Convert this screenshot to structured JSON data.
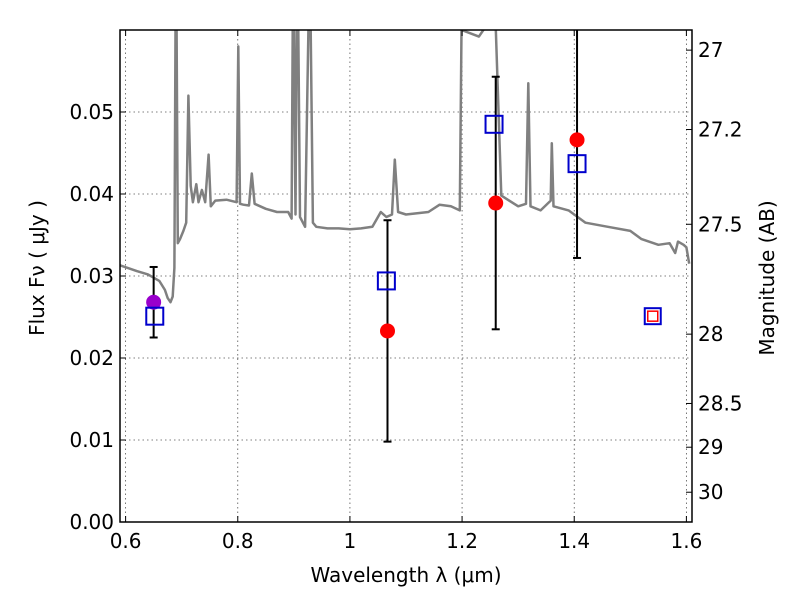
{
  "chart_data": {
    "type": "scatter",
    "title": "",
    "xlabel": "Wavelength  λ (μm)",
    "ylabel_left": "Flux  Fν  ( μJy )",
    "ylabel_right": "Magnitude (AB)",
    "xlim": [
      0.59,
      1.61
    ],
    "ylim": [
      0.0,
      0.06
    ],
    "grid": true,
    "x_ticks": [
      {
        "value": 0.6,
        "label": "0.6"
      },
      {
        "value": 0.8,
        "label": "0.8"
      },
      {
        "value": 1.0,
        "label": "1"
      },
      {
        "value": 1.2,
        "label": "1.2"
      },
      {
        "value": 1.4,
        "label": "1.4"
      },
      {
        "value": 1.6,
        "label": "1.6"
      }
    ],
    "y_ticks": [
      {
        "value": 0.0,
        "label": "0.00"
      },
      {
        "value": 0.01,
        "label": "0.01"
      },
      {
        "value": 0.02,
        "label": "0.02"
      },
      {
        "value": 0.03,
        "label": "0.03"
      },
      {
        "value": 0.04,
        "label": "0.04"
      },
      {
        "value": 0.05,
        "label": "0.05"
      }
    ],
    "right_ticks": [
      {
        "mag": 27,
        "label": "27"
      },
      {
        "mag": 27.2,
        "label": "27.2"
      },
      {
        "mag": 27.5,
        "label": "27.5"
      },
      {
        "mag": 28,
        "label": "28"
      },
      {
        "mag": 28.5,
        "label": "28.5"
      },
      {
        "mag": 29,
        "label": "29"
      },
      {
        "mag": 30,
        "label": "30"
      }
    ],
    "colors": {
      "model": "#808080",
      "observed": "#ff0000",
      "observed_first": "#9900cc",
      "model_box": "#0000cc",
      "error": "#000000"
    },
    "model_spectrum": [
      [
        0.59,
        0.0313
      ],
      [
        0.62,
        0.0306
      ],
      [
        0.64,
        0.0302
      ],
      [
        0.66,
        0.0294
      ],
      [
        0.67,
        0.0283
      ],
      [
        0.675,
        0.0273
      ],
      [
        0.68,
        0.0268
      ],
      [
        0.684,
        0.0275
      ],
      [
        0.687,
        0.031
      ],
      [
        0.689,
        0.06
      ],
      [
        0.691,
        0.06
      ],
      [
        0.693,
        0.034
      ],
      [
        0.697,
        0.0345
      ],
      [
        0.703,
        0.0355
      ],
      [
        0.708,
        0.0365
      ],
      [
        0.712,
        0.052
      ],
      [
        0.716,
        0.041
      ],
      [
        0.72,
        0.039
      ],
      [
        0.726,
        0.0412
      ],
      [
        0.73,
        0.039
      ],
      [
        0.736,
        0.0405
      ],
      [
        0.742,
        0.039
      ],
      [
        0.748,
        0.0448
      ],
      [
        0.752,
        0.0385
      ],
      [
        0.76,
        0.0392
      ],
      [
        0.78,
        0.0393
      ],
      [
        0.798,
        0.039
      ],
      [
        0.801,
        0.058
      ],
      [
        0.804,
        0.0388
      ],
      [
        0.81,
        0.0387
      ],
      [
        0.82,
        0.0386
      ],
      [
        0.825,
        0.0425
      ],
      [
        0.83,
        0.0388
      ],
      [
        0.85,
        0.0382
      ],
      [
        0.87,
        0.0378
      ],
      [
        0.89,
        0.0378
      ],
      [
        0.896,
        0.037
      ],
      [
        0.898,
        0.06
      ],
      [
        0.9,
        0.06
      ],
      [
        0.903,
        0.0375
      ],
      [
        0.905,
        0.06
      ],
      [
        0.908,
        0.06
      ],
      [
        0.911,
        0.0372
      ],
      [
        0.92,
        0.036
      ],
      [
        0.926,
        0.06
      ],
      [
        0.93,
        0.06
      ],
      [
        0.934,
        0.0365
      ],
      [
        0.94,
        0.036
      ],
      [
        0.96,
        0.0358
      ],
      [
        0.98,
        0.0358
      ],
      [
        1.0,
        0.0357
      ],
      [
        1.02,
        0.0358
      ],
      [
        1.04,
        0.036
      ],
      [
        1.055,
        0.0378
      ],
      [
        1.065,
        0.0372
      ],
      [
        1.075,
        0.0375
      ],
      [
        1.08,
        0.0442
      ],
      [
        1.086,
        0.0378
      ],
      [
        1.1,
        0.0375
      ],
      [
        1.14,
        0.0378
      ],
      [
        1.16,
        0.0387
      ],
      [
        1.18,
        0.0385
      ],
      [
        1.196,
        0.038
      ],
      [
        1.199,
        0.06
      ],
      [
        1.23,
        0.0592
      ],
      [
        1.24,
        0.0602
      ],
      [
        1.26,
        0.0605
      ],
      [
        1.27,
        0.0398
      ],
      [
        1.3,
        0.0385
      ],
      [
        1.314,
        0.0388
      ],
      [
        1.318,
        0.0535
      ],
      [
        1.322,
        0.0385
      ],
      [
        1.34,
        0.038
      ],
      [
        1.358,
        0.0392
      ],
      [
        1.36,
        0.0462
      ],
      [
        1.363,
        0.0385
      ],
      [
        1.39,
        0.038
      ],
      [
        1.42,
        0.0365
      ],
      [
        1.46,
        0.036
      ],
      [
        1.5,
        0.0355
      ],
      [
        1.52,
        0.0345
      ],
      [
        1.55,
        0.0338
      ],
      [
        1.57,
        0.034
      ],
      [
        1.58,
        0.0328
      ],
      [
        1.585,
        0.0342
      ],
      [
        1.595,
        0.0338
      ],
      [
        1.6,
        0.0335
      ],
      [
        1.605,
        0.0315
      ]
    ],
    "observed": [
      {
        "x": 0.65,
        "y": 0.0268,
        "err": 0.0043
      },
      {
        "x": 1.067,
        "y": 0.0233,
        "err": 0.0135
      },
      {
        "x": 1.26,
        "y": 0.0389,
        "err": 0.0154
      },
      {
        "x": 1.405,
        "y": 0.0466,
        "err": 0.0144
      },
      {
        "x": 1.54,
        "y": 0.0251,
        "err": null
      }
    ],
    "model_points": [
      {
        "x": 0.652,
        "y": 0.0251
      },
      {
        "x": 1.065,
        "y": 0.0294
      },
      {
        "x": 1.257,
        "y": 0.0485
      },
      {
        "x": 1.405,
        "y": 0.0437
      },
      {
        "x": 1.54,
        "y": 0.0251
      }
    ]
  }
}
